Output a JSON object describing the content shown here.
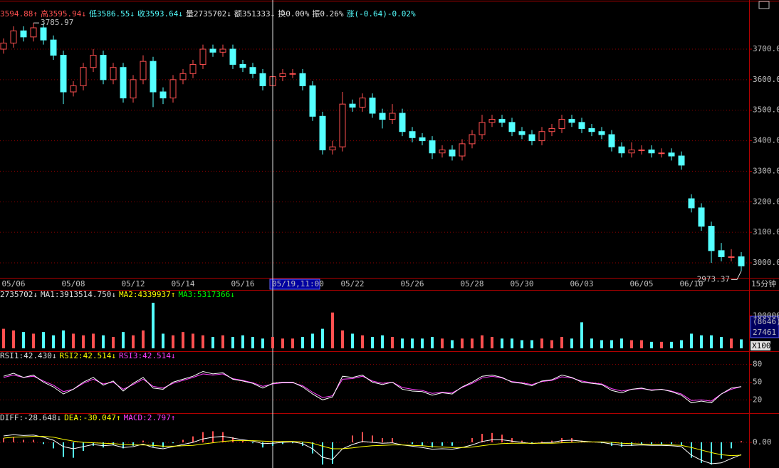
{
  "header": [
    {
      "text": "3594.88↑",
      "color": "#ff5050"
    },
    {
      "text": "高3595.94↓",
      "color": "#ff5050"
    },
    {
      "text": "低3586.55↓",
      "color": "#54ffff"
    },
    {
      "text": "收3593.64↓",
      "color": "#54ffff"
    },
    {
      "text": "量2735702↓",
      "color": "#e0e0e0"
    },
    {
      "text": "额351333↓",
      "color": "#e0e0e0"
    },
    {
      "text": "换0.00%",
      "color": "#e0e0e0"
    },
    {
      "text": "振0.26%",
      "color": "#e0e0e0"
    },
    {
      "text": "涨(-0.64)-0.02%",
      "color": "#54ffff"
    }
  ],
  "ui": {
    "period": "15分钟",
    "volume_box": "(8646)",
    "volume_unit": "X100"
  },
  "chart_data": [
    {
      "type": "candlestick",
      "highlight_index": 27,
      "up_color": "#ff5050",
      "down_color": "#54ffff",
      "grid": true,
      "categories": [
        null,
        "05/06",
        null,
        null,
        null,
        null,
        null,
        "05/08",
        null,
        null,
        null,
        null,
        null,
        "05/12",
        null,
        null,
        null,
        null,
        "05/14",
        null,
        null,
        null,
        null,
        null,
        "05/16",
        null,
        null,
        "05/19,11:00",
        null,
        null,
        null,
        null,
        null,
        null,
        null,
        "05/22",
        null,
        null,
        null,
        null,
        null,
        "05/26",
        null,
        null,
        null,
        null,
        null,
        "05/28",
        null,
        null,
        null,
        null,
        "05/30",
        null,
        null,
        null,
        null,
        null,
        "06/03",
        null,
        null,
        null,
        null,
        null,
        "06/05",
        null,
        null,
        null,
        null,
        "06/10",
        null,
        null,
        null,
        null,
        null
      ],
      "open": [
        3700,
        3720,
        3760,
        3740,
        3770,
        3730,
        3680,
        3560,
        3580,
        3640,
        3680,
        3600,
        3640,
        3540,
        3600,
        3660,
        3560,
        3540,
        3600,
        3620,
        3650,
        3700,
        3690,
        3700,
        3650,
        3640,
        3620,
        3580,
        3610,
        3620,
        3620,
        3580,
        3480,
        3370,
        3380,
        3520,
        3510,
        3540,
        3490,
        3470,
        3490,
        3430,
        3410,
        3400,
        3360,
        3370,
        3350,
        3390,
        3420,
        3460,
        3470,
        3460,
        3430,
        3420,
        3400,
        3430,
        3440,
        3470,
        3460,
        3440,
        3430,
        3420,
        3380,
        3360,
        3370,
        3370,
        3360,
        3360,
        3350,
        3210,
        3180,
        3120,
        3040,
        3020,
        3020
      ],
      "high": [
        3735,
        3775,
        3775,
        3785.97,
        3785,
        3745,
        3695,
        3595,
        3655,
        3700,
        3695,
        3655,
        3655,
        3615,
        3680,
        3675,
        3575,
        3615,
        3635,
        3665,
        3715,
        3715,
        3715,
        3715,
        3665,
        3655,
        3635,
        3625,
        3635,
        3635,
        3635,
        3595,
        3495,
        3400,
        3560,
        3535,
        3555,
        3555,
        3505,
        3520,
        3505,
        3445,
        3425,
        3415,
        3385,
        3385,
        3405,
        3435,
        3485,
        3485,
        3485,
        3475,
        3445,
        3435,
        3445,
        3455,
        3485,
        3485,
        3475,
        3455,
        3445,
        3435,
        3395,
        3395,
        3385,
        3385,
        3375,
        3375,
        3365,
        3225,
        3195,
        3135,
        3065,
        3045,
        3035
      ],
      "low": [
        3685,
        3705,
        3725,
        3725,
        3715,
        3665,
        3520,
        3545,
        3565,
        3625,
        3585,
        3585,
        3525,
        3525,
        3585,
        3510,
        3520,
        3525,
        3585,
        3605,
        3635,
        3675,
        3675,
        3635,
        3625,
        3605,
        3565,
        3565,
        3595,
        3605,
        3565,
        3465,
        3355,
        3355,
        3365,
        3495,
        3495,
        3475,
        3440,
        3455,
        3415,
        3395,
        3385,
        3340,
        3345,
        3335,
        3335,
        3375,
        3405,
        3445,
        3445,
        3415,
        3405,
        3385,
        3385,
        3415,
        3425,
        3445,
        3425,
        3415,
        3405,
        3365,
        3345,
        3345,
        3355,
        3345,
        3345,
        3335,
        3305,
        3165,
        3105,
        3000,
        3005,
        3005,
        2973.37
      ],
      "close": [
        3720,
        3760,
        3740,
        3770,
        3730,
        3680,
        3560,
        3580,
        3640,
        3680,
        3600,
        3640,
        3540,
        3600,
        3660,
        3560,
        3540,
        3600,
        3620,
        3650,
        3700,
        3690,
        3700,
        3650,
        3640,
        3620,
        3580,
        3610,
        3620,
        3620,
        3580,
        3480,
        3370,
        3380,
        3520,
        3510,
        3540,
        3490,
        3470,
        3490,
        3430,
        3410,
        3400,
        3360,
        3370,
        3350,
        3390,
        3420,
        3460,
        3470,
        3460,
        3430,
        3420,
        3400,
        3430,
        3440,
        3470,
        3460,
        3440,
        3430,
        3420,
        3380,
        3360,
        3370,
        3370,
        3360,
        3360,
        3350,
        3320,
        3180,
        3120,
        3040,
        3020,
        3020,
        2990
      ],
      "ylim": [
        2951,
        3854
      ],
      "yticks": [
        {
          "value": 3000,
          "label": "3000.00"
        },
        {
          "value": 3100,
          "label": "3100.00"
        },
        {
          "value": 3200,
          "label": "3200.00"
        },
        {
          "value": 3300,
          "label": "3300.00"
        },
        {
          "value": 3400,
          "label": "3400.00"
        },
        {
          "value": 3500,
          "label": "3500.00"
        },
        {
          "value": 3600,
          "label": "3600.00"
        },
        {
          "value": 3700,
          "label": "3700.00"
        }
      ]
    },
    {
      "type": "bar",
      "legend": [
        {
          "text": "2735702↓",
          "color": "#e0e0e0"
        },
        {
          "text": "MA1:3913514.750↓",
          "color": "#e0e0e0"
        },
        {
          "text": "MA2:4339937↑",
          "color": "#ffff00"
        },
        {
          "text": "MA3:5317366↓",
          "color": "#00ff00"
        }
      ],
      "values": [
        60000,
        55000,
        50000,
        45000,
        50000,
        40000,
        55000,
        45000,
        40000,
        45000,
        40000,
        35000,
        50000,
        40000,
        55000,
        140000,
        45000,
        40000,
        50000,
        45000,
        40000,
        35000,
        40000,
        35000,
        40000,
        35000,
        30000,
        35000,
        30000,
        30000,
        35000,
        45000,
        60000,
        110000,
        55000,
        45000,
        40000,
        35000,
        40000,
        35000,
        30000,
        30000,
        30000,
        35000,
        30000,
        25000,
        30000,
        30000,
        40000,
        35000,
        30000,
        30000,
        25000,
        25000,
        30000,
        25000,
        35000,
        30000,
        80000,
        30000,
        25000,
        25000,
        30000,
        25000,
        25000,
        20000,
        20000,
        20000,
        25000,
        45000,
        40000,
        40000,
        35000,
        30000,
        27461
      ],
      "ylim": [
        0,
        175000
      ],
      "yticks": [
        100000
      ]
    },
    {
      "type": "line",
      "legend": [
        {
          "text": "RSI1:42.430↓",
          "color": "#e0e0e0"
        },
        {
          "text": "RSI2:42.514↓",
          "color": "#ffff00"
        },
        {
          "text": "RSI3:42.514↓",
          "color": "#ff40ff"
        }
      ],
      "series": [
        {
          "color": "#ff40ff",
          "values": [
            58,
            62,
            58,
            60,
            52,
            45,
            34,
            38,
            48,
            55,
            47,
            50,
            38,
            46,
            55,
            43,
            40,
            48,
            53,
            58,
            64,
            62,
            64,
            56,
            53,
            49,
            43,
            47,
            49,
            49,
            44,
            33,
            24,
            27,
            55,
            56,
            60,
            52,
            48,
            50,
            41,
            38,
            36,
            31,
            33,
            32,
            41,
            48,
            57,
            60,
            57,
            51,
            49,
            46,
            51,
            53,
            59,
            57,
            52,
            49,
            47,
            39,
            35,
            38,
            39,
            37,
            38,
            35,
            30,
            19,
            20,
            18,
            30,
            38,
            42.514
          ]
        },
        {
          "color": "#ffffff",
          "values": [
            60,
            65,
            58,
            62,
            50,
            42,
            30,
            38,
            50,
            58,
            45,
            52,
            35,
            48,
            58,
            40,
            38,
            50,
            55,
            60,
            68,
            64,
            66,
            55,
            52,
            48,
            40,
            48,
            50,
            50,
            42,
            30,
            20,
            25,
            60,
            58,
            62,
            50,
            46,
            50,
            38,
            35,
            34,
            28,
            32,
            30,
            42,
            50,
            60,
            62,
            58,
            50,
            48,
            44,
            52,
            54,
            62,
            58,
            50,
            48,
            46,
            36,
            32,
            38,
            40,
            36,
            38,
            34,
            28,
            15,
            18,
            15,
            30,
            40,
            42.43
          ]
        }
      ],
      "ylim": [
        0,
        100
      ],
      "yticks": [
        20,
        50,
        80
      ],
      "grid": true
    },
    {
      "type": "macd",
      "legend": [
        {
          "text": "DIFF:-28.648↓",
          "color": "#e0e0e0"
        },
        {
          "text": "DEA:-30.047↑",
          "color": "#ffff00"
        },
        {
          "text": "MACD:2.797↑",
          "color": "#ff40ff"
        }
      ],
      "bars": [
        10,
        12,
        6,
        6,
        -4,
        -14,
        -34,
        -36,
        -20,
        -8,
        -12,
        -6,
        -14,
        -8,
        4,
        -10,
        -12,
        -2,
        6,
        14,
        24,
        26,
        24,
        12,
        4,
        -2,
        -12,
        -8,
        -4,
        -2,
        -8,
        -26,
        -52,
        -50,
        0,
        16,
        24,
        16,
        10,
        10,
        0,
        -4,
        -8,
        -12,
        -8,
        -8,
        0,
        10,
        20,
        22,
        18,
        10,
        4,
        -2,
        2,
        4,
        10,
        10,
        4,
        0,
        -2,
        -8,
        -10,
        -8,
        -4,
        -4,
        -4,
        -4,
        -6,
        -36,
        -48,
        -52,
        -38,
        -14,
        2.797
      ],
      "series": [
        {
          "color": "#ffffff",
          "values": [
            15,
            18,
            16,
            17,
            12,
            5,
            -10,
            -15,
            -10,
            -5,
            -8,
            -6,
            -12,
            -10,
            -4,
            -12,
            -15,
            -10,
            -5,
            0,
            8,
            12,
            14,
            10,
            6,
            3,
            -3,
            -2,
            0,
            1,
            -3,
            -15,
            -35,
            -40,
            -15,
            -5,
            2,
            0,
            -2,
            -1,
            -6,
            -9,
            -12,
            -16,
            -15,
            -16,
            -12,
            -6,
            2,
            6,
            6,
            3,
            0,
            -3,
            -1,
            0,
            4,
            5,
            3,
            1,
            0,
            -4,
            -7,
            -7,
            -6,
            -7,
            -7,
            -8,
            -10,
            -30,
            -42,
            -50,
            -48,
            -38,
            -28.648
          ]
        },
        {
          "color": "#ffff00",
          "values": [
            10,
            12,
            13,
            14,
            14,
            12,
            7,
            3,
            0,
            -1,
            -2,
            -3,
            -5,
            -6,
            -6,
            -7,
            -9,
            -9,
            -8,
            -7,
            -4,
            -1,
            2,
            4,
            4,
            4,
            3,
            2,
            2,
            2,
            1,
            -2,
            -9,
            -15,
            -15,
            -13,
            -10,
            -8,
            -7,
            -6,
            -6,
            -7,
            -8,
            -10,
            -11,
            -12,
            -12,
            -11,
            -8,
            -5,
            -3,
            -2,
            -2,
            -2,
            -2,
            -2,
            -1,
            0,
            1,
            1,
            1,
            0,
            -2,
            -3,
            -4,
            -5,
            -5,
            -6,
            -7,
            -12,
            -18,
            -24,
            -29,
            -31,
            -30.047
          ]
        }
      ],
      "ylim": [
        -60,
        65
      ],
      "yticks": [
        {
          "value": 0,
          "label": "0.00"
        }
      ],
      "grid": true
    }
  ]
}
